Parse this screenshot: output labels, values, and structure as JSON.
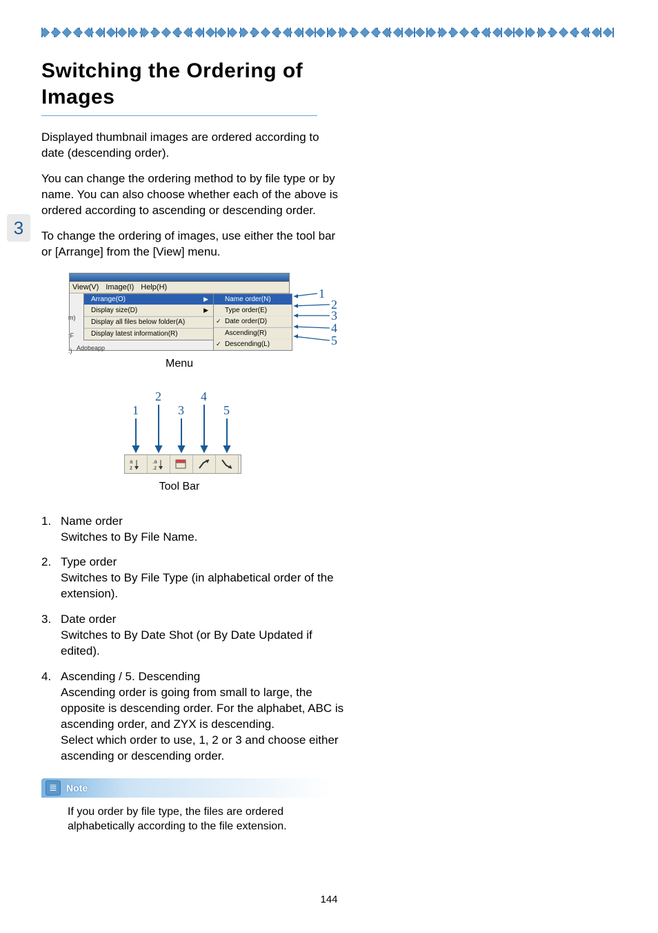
{
  "decoration": {
    "diamond_count": 52,
    "diamond_color": "#5b96c9",
    "diamond_border": "#4a85b8"
  },
  "section_number": "3",
  "title": "Switching the Ordering of Images",
  "paragraphs": {
    "p1": "Displayed thumbnail images are ordered according to date (descending order).",
    "p2": "You can change the ordering method to by file type or by name. You can also choose whether each of the above is ordered according to ascending or descending order.",
    "p3": "To change the ordering of images, use either the tool bar or [Arrange] from the [View] menu."
  },
  "menu_figure": {
    "caption": "Menu",
    "menubar": {
      "view": "View(V)",
      "image": "Image(I)",
      "help": "Help(H)"
    },
    "dropdown": {
      "arrange": "Arrange(O)",
      "display_size": "Display size(D)",
      "display_all": "Display all files below folder(A)",
      "display_latest": "Display latest information(R)"
    },
    "left_crop": {
      "a": "m)",
      "b": ":F",
      "c": ":)"
    },
    "bottom_crop": "Adobeapp",
    "submenu": {
      "name_order": "Name order(N)",
      "type_order": "Type order(E)",
      "date_order": "Date order(D)",
      "ascending": "Ascending(R)",
      "descending": "Descending(L)"
    },
    "callouts": {
      "c1": "1",
      "c2": "2",
      "c3": "3",
      "c4": "4",
      "c5": "5"
    },
    "callout_color": "#1a5a96"
  },
  "toolbar_figure": {
    "caption": "Tool Bar",
    "numbers": {
      "n1": "1",
      "n2": "2",
      "n3": "3",
      "n4": "4",
      "n5": "5"
    },
    "icons": {
      "b1": "a-z",
      "b2": "a-z",
      "b3": "date",
      "b4": "asc",
      "b5": "desc"
    }
  },
  "list": {
    "i1": {
      "num": "1.",
      "title": "Name order",
      "desc": "Switches to By File Name."
    },
    "i2": {
      "num": "2.",
      "title": "Type order",
      "desc": "Switches to By File Type (in alphabetical order of the extension)."
    },
    "i3": {
      "num": "3.",
      "title": "Date order",
      "desc": "Switches to By Date Shot (or By Date Updated if edited)."
    },
    "i4": {
      "num": "4.",
      "title": "Ascending / 5. Descending",
      "desc": "Ascending order is going from small to large, the opposite is descending order. For the alphabet, ABC is ascending order, and ZYX is descending.\nSelect which order to use, 1, 2 or 3 and choose either ascending or descending order."
    }
  },
  "note": {
    "label": "Note",
    "text": "If you order by file type, the files are ordered alphabetically according to the file extension."
  },
  "page_number": "144",
  "colors": {
    "accent_blue": "#1a5a96",
    "light_blue": "#5b96c9",
    "title_underline": "#6aa3d4",
    "section_bg": "#e9e9e9"
  }
}
